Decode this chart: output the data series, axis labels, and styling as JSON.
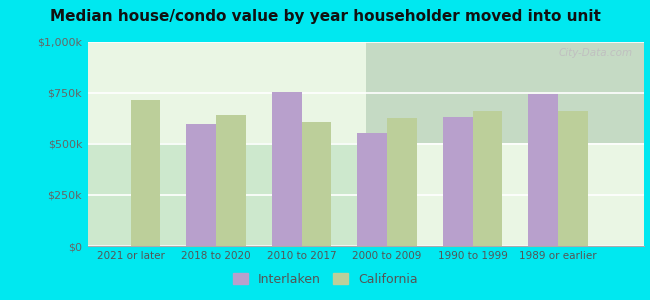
{
  "title": "Median house/condo value by year householder moved into unit",
  "categories": [
    "2021 or later",
    "2018 to 2020",
    "2010 to 2017",
    "2000 to 2009",
    "1990 to 1999",
    "1989 or earlier"
  ],
  "interlaken_values": [
    0,
    600000,
    755000,
    555000,
    630000,
    745000
  ],
  "california_values": [
    715000,
    640000,
    610000,
    625000,
    660000,
    660000
  ],
  "interlaken_color": "#b8a0cc",
  "california_color": "#bccf9a",
  "background_color": "#00e8f0",
  "plot_bg_color": "#e8f5e2",
  "ylim": [
    0,
    1000000
  ],
  "yticks": [
    0,
    250000,
    500000,
    750000,
    1000000
  ],
  "ytick_labels": [
    "$0",
    "$250k",
    "$500k",
    "$750k",
    "$1,000k"
  ],
  "watermark": "City-Data.com",
  "legend_interlaken": "Interlaken",
  "legend_california": "California",
  "grid_color": "#c8dfc0"
}
